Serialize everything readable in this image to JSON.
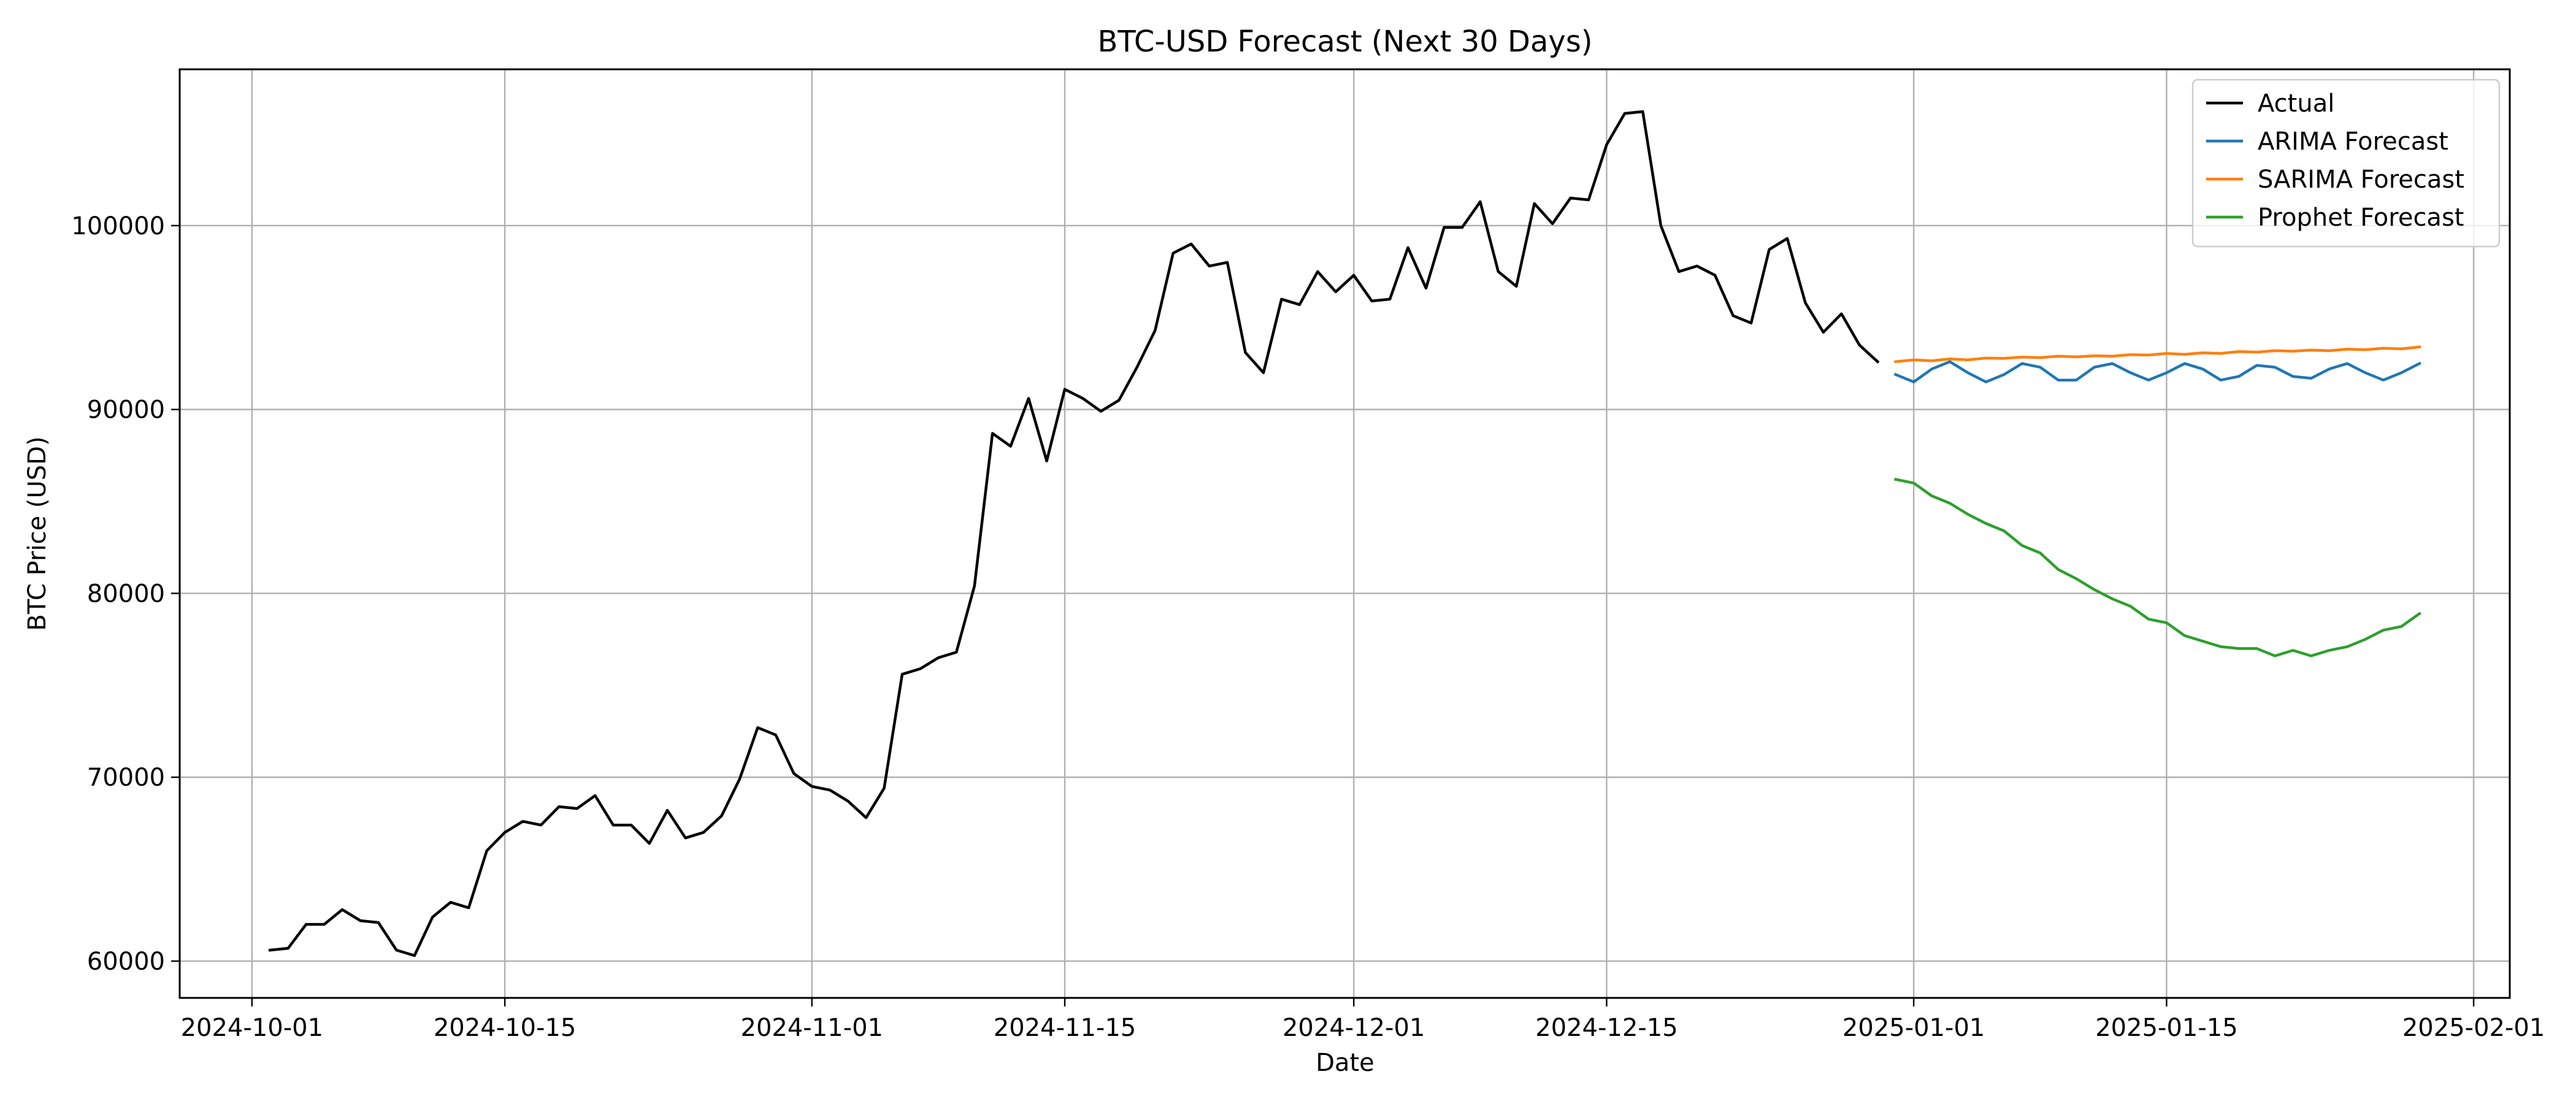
{
  "chart_data": {
    "type": "line",
    "title": "BTC-USD Forecast (Next 30 Days)",
    "xlabel": "Date",
    "ylabel": "BTC Price (USD)",
    "xlim": [
      "2024-09-27",
      "2025-02-03"
    ],
    "ylim": [
      58000,
      108500
    ],
    "x_ticks": [
      "2024-10-01",
      "2024-10-15",
      "2024-11-01",
      "2024-11-15",
      "2024-12-01",
      "2024-12-15",
      "2025-01-01",
      "2025-01-15",
      "2025-02-01"
    ],
    "y_ticks": [
      60000,
      70000,
      80000,
      90000,
      100000
    ],
    "grid": true,
    "legend_position": "top-right",
    "series": [
      {
        "name": "Actual",
        "color": "#000000",
        "start_date": "2024-10-02",
        "values": [
          60600,
          60700,
          62000,
          62000,
          62800,
          62200,
          62100,
          60600,
          60300,
          62400,
          63200,
          62900,
          66000,
          67000,
          67600,
          67400,
          68400,
          68300,
          69000,
          67400,
          67400,
          66400,
          68200,
          66700,
          67000,
          67900,
          69900,
          72700,
          72300,
          70200,
          69500,
          69300,
          68700,
          67800,
          69400,
          75600,
          75900,
          76500,
          76800,
          80400,
          88700,
          88000,
          90600,
          87200,
          91100,
          90600,
          89900,
          90500,
          92300,
          94300,
          98500,
          99000,
          97800,
          98000,
          93100,
          92000,
          96000,
          95700,
          97500,
          96400,
          97300,
          95900,
          96000,
          98800,
          96600,
          99900,
          99900,
          101300,
          97500,
          96700,
          101200,
          100100,
          101500,
          101400,
          104400,
          106100,
          106200,
          100000,
          97500,
          97800,
          97300,
          95100,
          94700,
          98700,
          99300,
          95800,
          94200,
          95200,
          93500,
          92600
        ]
      },
      {
        "name": "ARIMA Forecast",
        "color": "#1f77b4",
        "start_date": "2024-12-31",
        "values": [
          91900,
          91500,
          92200,
          92600,
          92000,
          91500,
          91900,
          92500,
          92300,
          91600,
          91600,
          92300,
          92500,
          92000,
          91600,
          92000,
          92500,
          92200,
          91600,
          91800,
          92400,
          92300,
          91800,
          91700,
          92200,
          92500,
          92000,
          91600,
          92000,
          92500
        ]
      },
      {
        "name": "SARIMA Forecast",
        "color": "#ff7f0e",
        "start_date": "2024-12-31",
        "values": [
          92600,
          92700,
          92650,
          92750,
          92700,
          92800,
          92780,
          92850,
          92820,
          92900,
          92860,
          92920,
          92900,
          92980,
          92960,
          93050,
          93000,
          93080,
          93050,
          93150,
          93120,
          93200,
          93170,
          93230,
          93200,
          93280,
          93250,
          93330,
          93300,
          93400
        ]
      },
      {
        "name": "Prophet Forecast",
        "color": "#2ca02c",
        "start_date": "2024-12-31",
        "values": [
          86200,
          86000,
          85300,
          84900,
          84300,
          83800,
          83400,
          82600,
          82200,
          81300,
          80800,
          80200,
          79700,
          79300,
          78600,
          78400,
          77700,
          77400,
          77100,
          77000,
          77000,
          76600,
          76900,
          76600,
          76900,
          77100,
          77500,
          78000,
          78200,
          78900
        ]
      }
    ]
  }
}
